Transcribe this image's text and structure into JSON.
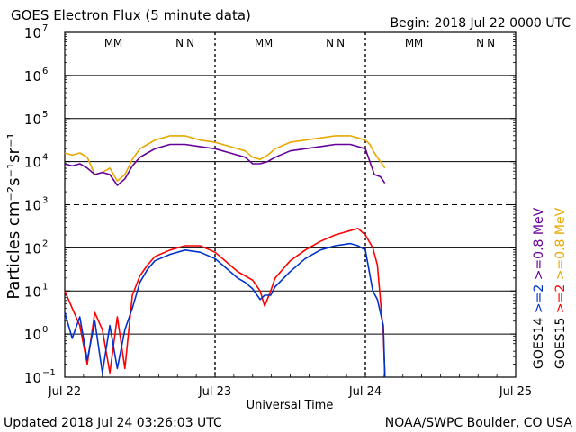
{
  "chart_data": {
    "type": "line",
    "title": "GOES Electron Flux (5 minute data)",
    "begin_label": "Begin: 2018 Jul 22 0000 UTC",
    "xlabel": "Universal Time",
    "ylabel": "Particles cm⁻²s⁻¹sr⁻¹",
    "xlim_days": [
      0,
      3
    ],
    "x_ticks": [
      {
        "day": 0,
        "label": "Jul 22"
      },
      {
        "day": 1,
        "label": "Jul 23"
      },
      {
        "day": 2,
        "label": "Jul 24"
      },
      {
        "day": 3,
        "label": "Jul 25"
      }
    ],
    "ylim_log10": [
      -1,
      7
    ],
    "y_ticks": [
      {
        "exp": -1,
        "label": "10",
        "sup": "−1"
      },
      {
        "exp": 0,
        "label": "10",
        "sup": "0"
      },
      {
        "exp": 1,
        "label": "10",
        "sup": "1"
      },
      {
        "exp": 2,
        "label": "10",
        "sup": "2"
      },
      {
        "exp": 3,
        "label": "10",
        "sup": "3"
      },
      {
        "exp": 4,
        "label": "10",
        "sup": "4"
      },
      {
        "exp": 5,
        "label": "10",
        "sup": "5"
      },
      {
        "exp": 6,
        "label": "10",
        "sup": "6"
      },
      {
        "exp": 7,
        "label": "10",
        "sup": "7"
      }
    ],
    "threshold_log10": 3,
    "grid": "horizontal decades",
    "day_markers": [
      {
        "day": 0.33,
        "m": "M",
        "m2": "M"
      },
      {
        "day": 1.33,
        "m": "M",
        "m2": "M"
      },
      {
        "day": 2.33,
        "m": "M",
        "m2": "M"
      }
    ],
    "night_markers": [
      {
        "day": 0.8,
        "n": "N",
        "n2": "N"
      },
      {
        "day": 1.8,
        "n": "N",
        "n2": "N"
      },
      {
        "day": 2.8,
        "n": "N",
        "n2": "N"
      }
    ],
    "series": [
      {
        "name": "GOES15 >=0.8 MeV",
        "color": "#e8a800",
        "x": [
          0,
          0.05,
          0.1,
          0.15,
          0.2,
          0.25,
          0.3,
          0.35,
          0.4,
          0.45,
          0.5,
          0.55,
          0.6,
          0.65,
          0.7,
          0.8,
          0.9,
          1.0,
          1.1,
          1.2,
          1.25,
          1.3,
          1.35,
          1.4,
          1.5,
          1.6,
          1.7,
          1.8,
          1.9,
          1.95,
          2.0,
          2.03,
          2.06,
          2.1,
          2.13
        ],
        "log10": [
          4.2,
          4.15,
          4.2,
          4.1,
          3.7,
          3.75,
          3.85,
          3.55,
          3.7,
          4.05,
          4.3,
          4.4,
          4.5,
          4.55,
          4.6,
          4.6,
          4.5,
          4.45,
          4.35,
          4.25,
          4.1,
          4.05,
          4.15,
          4.3,
          4.45,
          4.5,
          4.55,
          4.6,
          4.6,
          4.55,
          4.5,
          4.4,
          4.2,
          4.0,
          3.85
        ]
      },
      {
        "name": "GOES14 >=0.8 MeV",
        "color": "#660099",
        "x": [
          0,
          0.05,
          0.1,
          0.15,
          0.2,
          0.25,
          0.3,
          0.35,
          0.4,
          0.45,
          0.5,
          0.55,
          0.6,
          0.65,
          0.7,
          0.8,
          0.9,
          1.0,
          1.1,
          1.2,
          1.25,
          1.3,
          1.35,
          1.4,
          1.5,
          1.6,
          1.7,
          1.8,
          1.9,
          1.95,
          2.0,
          2.03,
          2.06,
          2.1,
          2.13
        ],
        "log10": [
          3.95,
          3.9,
          3.95,
          3.85,
          3.7,
          3.75,
          3.7,
          3.45,
          3.6,
          3.9,
          4.1,
          4.2,
          4.3,
          4.35,
          4.4,
          4.4,
          4.35,
          4.3,
          4.2,
          4.1,
          3.95,
          3.95,
          4.0,
          4.1,
          4.25,
          4.3,
          4.35,
          4.4,
          4.4,
          4.35,
          4.3,
          4.0,
          3.7,
          3.65,
          3.5
        ]
      },
      {
        "name": "GOES15 >=2 MeV",
        "color": "#ff0000",
        "x": [
          0,
          0.05,
          0.1,
          0.15,
          0.2,
          0.25,
          0.3,
          0.35,
          0.4,
          0.45,
          0.5,
          0.55,
          0.6,
          0.7,
          0.8,
          0.9,
          1.0,
          1.05,
          1.1,
          1.15,
          1.2,
          1.25,
          1.3,
          1.33,
          1.37,
          1.4,
          1.5,
          1.6,
          1.7,
          1.8,
          1.9,
          1.95,
          2.0,
          2.05,
          2.08,
          2.1,
          2.12,
          2.13
        ],
        "log10": [
          1.0,
          0.6,
          0.2,
          -0.7,
          0.5,
          0.1,
          -0.9,
          0.4,
          -0.8,
          0.9,
          1.35,
          1.6,
          1.8,
          1.95,
          2.05,
          2.05,
          1.9,
          1.75,
          1.6,
          1.45,
          1.35,
          1.25,
          1.0,
          0.65,
          1.0,
          1.3,
          1.7,
          1.95,
          2.15,
          2.3,
          2.4,
          2.45,
          2.3,
          2.0,
          1.6,
          0.8,
          0.0,
          -1.0
        ]
      },
      {
        "name": "GOES14 >=2 MeV",
        "color": "#0033cc",
        "x": [
          0,
          0.05,
          0.1,
          0.15,
          0.2,
          0.25,
          0.3,
          0.35,
          0.4,
          0.45,
          0.5,
          0.55,
          0.6,
          0.7,
          0.8,
          0.9,
          1.0,
          1.05,
          1.1,
          1.15,
          1.2,
          1.25,
          1.3,
          1.33,
          1.37,
          1.4,
          1.5,
          1.6,
          1.7,
          1.8,
          1.9,
          1.95,
          2.0,
          2.05,
          2.08,
          2.1,
          2.12,
          2.13
        ],
        "log10": [
          0.5,
          -0.1,
          0.4,
          -0.6,
          0.3,
          -0.9,
          0.2,
          -0.8,
          0.1,
          0.6,
          1.2,
          1.5,
          1.7,
          1.85,
          1.95,
          1.9,
          1.75,
          1.6,
          1.45,
          1.3,
          1.2,
          1.05,
          0.8,
          0.9,
          0.9,
          1.1,
          1.45,
          1.75,
          1.95,
          2.05,
          2.1,
          2.05,
          1.95,
          1.0,
          0.8,
          0.5,
          0.2,
          -1.0
        ]
      }
    ],
    "legend": [
      {
        "sat": "GOES14",
        "low": ">=2",
        "high": ">=0.8",
        "unit": "MeV",
        "low_color": "#0033cc",
        "high_color": "#660099"
      },
      {
        "sat": "GOES15",
        "low": ">=2",
        "high": ">=0.8",
        "unit": "MeV",
        "low_color": "#ff0000",
        "high_color": "#e8a800"
      }
    ]
  },
  "footer": {
    "updated": "Updated 2018 Jul 24 03:26:03 UTC",
    "credit": "NOAA/SWPC Boulder, CO USA"
  }
}
